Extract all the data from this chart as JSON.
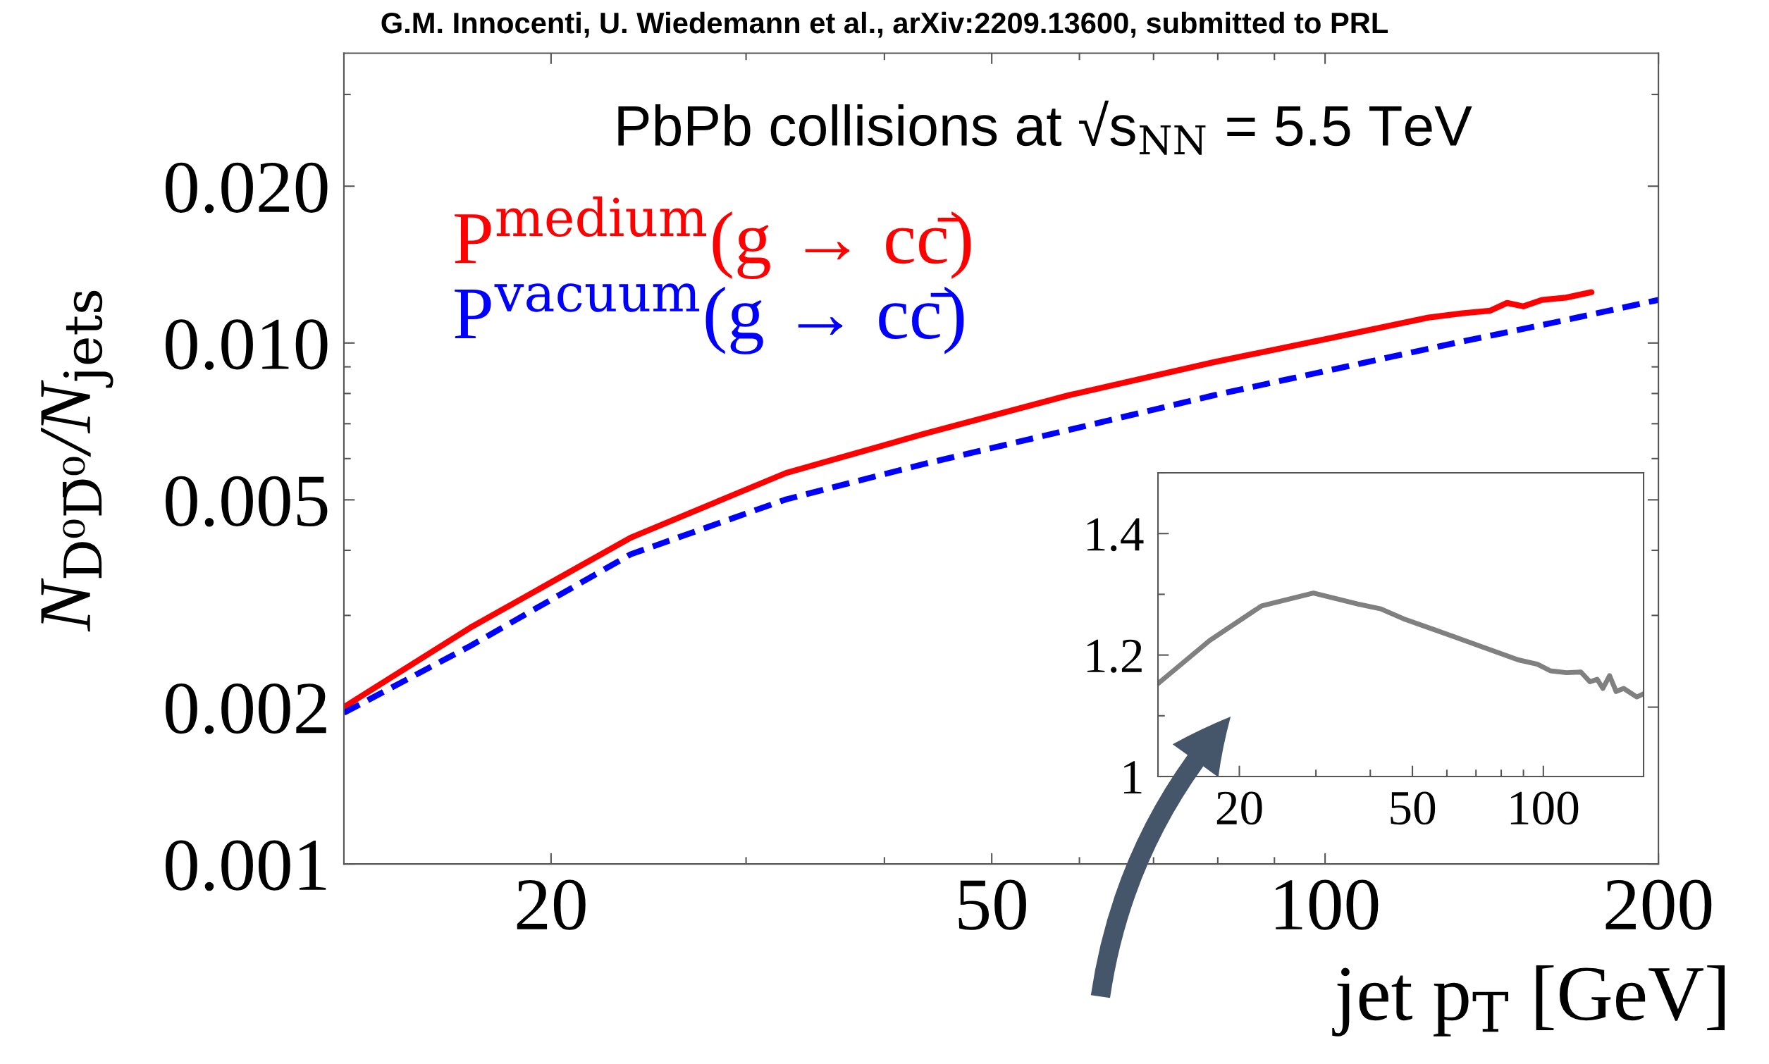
{
  "chart_data": [
    {
      "type": "line",
      "title": "G.M. Innocenti, U. Wiedemann et al., arXiv:2209.13600, submitted to PRL",
      "xlabel": "jet p$_{T}$ [GeV]",
      "ylabel": "N$_{D⁰D̄⁰}$/N$_{jets}$",
      "annotations": [
        "PbPb collisions at √s$_{NN}$ = 5.5 TeV"
      ],
      "log": "xy",
      "xlim": [
        13,
        200
      ],
      "ylim": [
        0.001,
        0.036
      ],
      "xticks": [
        20,
        50,
        100,
        200
      ],
      "yticks": [
        0.001,
        0.002,
        0.005,
        {
          "value": 0.01,
          "label": "0.010"
        },
        {
          "value": 0.02,
          "label": "0.020"
        }
      ],
      "legend": "top left",
      "grid": false,
      "series": [
        {
          "name": "P$^{medium}$(g → cc̄)",
          "color": "#ff0000",
          "line_style": "solid",
          "x": [
            13.0,
            16.9,
            23.6,
            32.6,
            43.3,
            58.7,
            79.4,
            102,
            124,
            133,
            141,
            146,
            151,
            157,
            165,
            174
          ],
          "values": [
            0.002,
            0.00284,
            0.00423,
            0.00563,
            0.00668,
            0.00794,
            0.00919,
            0.01026,
            0.01119,
            0.0114,
            0.01154,
            0.01194,
            0.01176,
            0.0121,
            0.01222,
            0.01252
          ]
        },
        {
          "name": "P$^{vacuum}$(g → cc̄)",
          "color": "#0000ff",
          "line_style": "dashed",
          "x": [
            13.0,
            16.9,
            23.6,
            32.6,
            43.3,
            58.7,
            79.4,
            102,
            131,
            162,
            200
          ],
          "values": [
            0.00195,
            0.00262,
            0.00393,
            0.00501,
            0.00585,
            0.00681,
            0.00794,
            0.00891,
            0.01,
            0.01098,
            0.0121
          ]
        }
      ]
    },
    {
      "type": "line",
      "log": "x",
      "xlim": [
        13,
        170
      ],
      "ylim": [
        1,
        1.5
      ],
      "xticks": [
        20,
        50,
        100
      ],
      "yticks": [
        1,
        1.2,
        1.4
      ],
      "grid": false,
      "series": [
        {
          "color": "#808080",
          "line_style": "solid",
          "x": [
            13.0,
            17.1,
            22.5,
            29.6,
            37.4,
            42.3,
            47.6,
            62.4,
            87.6,
            96.9,
            103.8,
            113,
            122,
            128,
            133,
            137,
            142,
            147,
            153,
            164,
            170
          ],
          "values": [
            1.153,
            1.224,
            1.281,
            1.302,
            1.284,
            1.276,
            1.26,
            1.23,
            1.192,
            1.185,
            1.174,
            1.171,
            1.172,
            1.156,
            1.16,
            1.145,
            1.166,
            1.14,
            1.145,
            1.131,
            1.136
          ]
        }
      ]
    }
  ]
}
